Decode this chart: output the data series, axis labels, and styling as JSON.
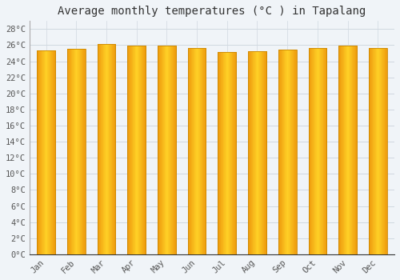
{
  "title": "Average monthly temperatures (°C ) in Tapalang",
  "months": [
    "Jan",
    "Feb",
    "Mar",
    "Apr",
    "May",
    "Jun",
    "Jul",
    "Aug",
    "Sep",
    "Oct",
    "Nov",
    "Dec"
  ],
  "values": [
    25.3,
    25.5,
    26.1,
    25.9,
    25.9,
    25.6,
    25.1,
    25.2,
    25.4,
    25.6,
    25.9,
    25.6
  ],
  "bar_color_left": "#F5A800",
  "bar_color_center": "#FFD700",
  "bar_color_right": "#F5A800",
  "bar_edge_color": "#CC8800",
  "ylim": [
    0,
    29
  ],
  "background_color": "#f0f4f8",
  "plot_bg_color": "#f0f4f8",
  "grid_color": "#d0d8e0",
  "title_fontsize": 10,
  "tick_fontsize": 7.5,
  "font_family": "monospace",
  "bar_width": 0.6
}
